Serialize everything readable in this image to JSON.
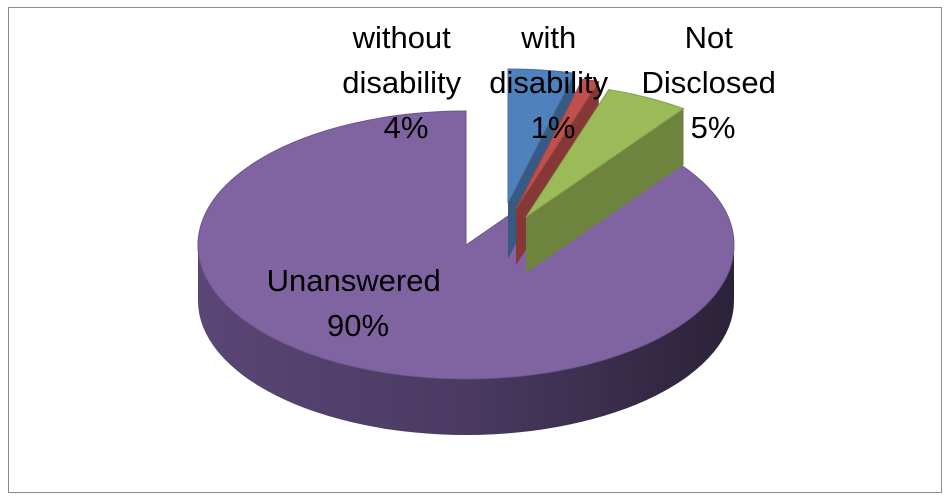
{
  "chart_data": {
    "type": "pie",
    "style": "3d-exploded",
    "slices": [
      {
        "label": [
          "without",
          "disability",
          "4%"
        ],
        "value": 4,
        "color": "#4f81bd"
      },
      {
        "label": [
          "with",
          "disability",
          "1%"
        ],
        "value": 1,
        "color": "#c0504d"
      },
      {
        "label": [
          "Not",
          "Disclosed",
          "5%"
        ],
        "value": 5,
        "color": "#9bbb59"
      },
      {
        "label": [
          "Unanswered",
          "90%"
        ],
        "value": 90,
        "color": "#8064a2"
      }
    ]
  }
}
